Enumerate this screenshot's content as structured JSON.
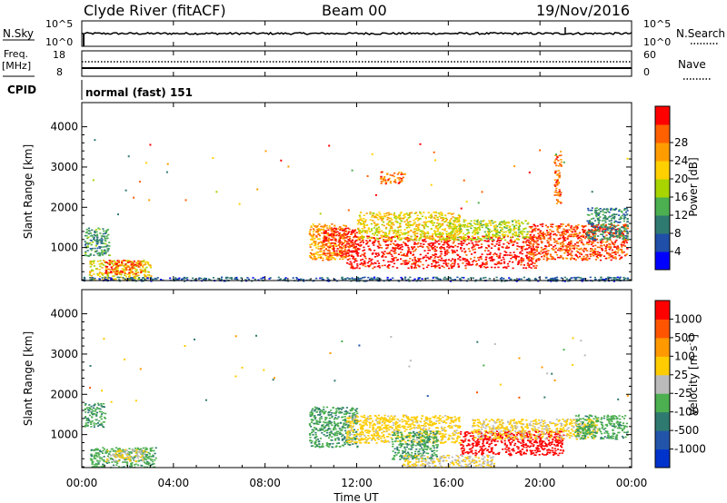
{
  "header": {
    "station": "Clyde River (fitACF)",
    "beam": "Beam 00",
    "date": "19/Nov/2016"
  },
  "noise_panel": {
    "left_label": "N.Sky",
    "right_label": "N.Search",
    "right_legend_style": "dotted",
    "left_ticks": [
      "10^5",
      "10^0"
    ],
    "right_ticks": [
      "10^5",
      "10^0"
    ]
  },
  "freq_panel": {
    "left_label_1": "Freq.",
    "left_label_2": "[MHz]",
    "right_label": "Nave",
    "right_legend_style": "dotted",
    "left_ticks": [
      "18",
      "8"
    ],
    "right_ticks": [
      "60",
      "0"
    ]
  },
  "cpid": {
    "label": "CPID",
    "value": "normal (fast) 151"
  },
  "time_axis": {
    "label": "Time UT",
    "ticks": [
      "00:00",
      "04:00",
      "08:00",
      "12:00",
      "16:00",
      "20:00",
      "00:00"
    ]
  },
  "range_axis": {
    "label": "Slant Range [km]",
    "ticks": [
      "1000",
      "2000",
      "3000",
      "4000"
    ]
  },
  "power_colorbar": {
    "label": "Power [dB]",
    "ticks": [
      "4",
      "8",
      "12",
      "16",
      "20",
      "24",
      "28"
    ],
    "colors": [
      "#0000ff",
      "#1f4fa8",
      "#2f7a70",
      "#4caf50",
      "#a8d400",
      "#ffd000",
      "#ff9d00",
      "#ff6000",
      "#ff0000"
    ]
  },
  "velocity_colorbar": {
    "label": "Velocity [m s",
    "label_sup": "-1",
    "label_end": "]",
    "ticks": [
      "1000",
      "500",
      "100",
      "25",
      "-25",
      "-100",
      "-500",
      "-1000"
    ],
    "colors": [
      "#0033cc",
      "#2255aa",
      "#2f7a70",
      "#4caf50",
      "#bbbbbb",
      "#ffcc00",
      "#ff9900",
      "#ff5500",
      "#ff0000"
    ]
  },
  "chart_data": [
    {
      "type": "heatmap",
      "title": "Power",
      "xlabel": "Time UT",
      "ylabel": "Slant Range [km]",
      "xlim": [
        0,
        24
      ],
      "ylim": [
        180,
        4600
      ],
      "colorbar_range": [
        0,
        30
      ],
      "regions": [
        {
          "t": [
            0.1,
            1.2
          ],
          "r": [
            800,
            1500
          ],
          "value": 10
        },
        {
          "t": [
            0.3,
            3.0
          ],
          "r": [
            200,
            700
          ],
          "value": 18
        },
        {
          "t": [
            1.0,
            2.6
          ],
          "r": [
            350,
            700
          ],
          "value": 26
        },
        {
          "t": [
            0.0,
            24.0
          ],
          "r": [
            180,
            280
          ],
          "value": 6
        },
        {
          "t": [
            9.9,
            11.5
          ],
          "r": [
            700,
            1600
          ],
          "value": 22
        },
        {
          "t": [
            10.5,
            12.0
          ],
          "r": [
            800,
            1500
          ],
          "value": 28
        },
        {
          "t": [
            11.5,
            20.0
          ],
          "r": [
            500,
            1300
          ],
          "value": 29
        },
        {
          "t": [
            12.0,
            16.5
          ],
          "r": [
            1200,
            1900
          ],
          "value": 18
        },
        {
          "t": [
            16.0,
            19.5
          ],
          "r": [
            1200,
            1700
          ],
          "value": 16
        },
        {
          "t": [
            19.5,
            23.8
          ],
          "r": [
            700,
            1600
          ],
          "value": 26
        },
        {
          "t": [
            22.0,
            23.8
          ],
          "r": [
            1200,
            2000
          ],
          "value": 9
        },
        {
          "t": [
            13.0,
            14.0
          ],
          "r": [
            2600,
            2900
          ],
          "value": 24
        },
        {
          "t": [
            20.6,
            20.9
          ],
          "r": [
            2100,
            3400
          ],
          "value": 24
        }
      ]
    },
    {
      "type": "heatmap",
      "title": "Velocity",
      "xlabel": "Time UT",
      "ylabel": "Slant Range [km]",
      "xlim": [
        0,
        24
      ],
      "ylim": [
        180,
        4600
      ],
      "colorbar_range": [
        -1000,
        1000
      ],
      "regions": [
        {
          "t": [
            0.1,
            1.0
          ],
          "r": [
            1200,
            1800
          ],
          "value": -300
        },
        {
          "t": [
            0.3,
            3.2
          ],
          "r": [
            200,
            700
          ],
          "value": -250
        },
        {
          "t": [
            1.0,
            2.8
          ],
          "r": [
            350,
            650
          ],
          "value": 100
        },
        {
          "t": [
            9.9,
            12.0
          ],
          "r": [
            700,
            1700
          ],
          "value": -300
        },
        {
          "t": [
            11.5,
            16.5
          ],
          "r": [
            800,
            1500
          ],
          "value": 200
        },
        {
          "t": [
            13.5,
            15.5
          ],
          "r": [
            400,
            1100
          ],
          "value": -300
        },
        {
          "t": [
            16.5,
            21.0
          ],
          "r": [
            500,
            1100
          ],
          "value": 900
        },
        {
          "t": [
            17.0,
            22.5
          ],
          "r": [
            900,
            1400
          ],
          "value": 150
        },
        {
          "t": [
            21.5,
            23.8
          ],
          "r": [
            900,
            1500
          ],
          "value": -250
        },
        {
          "t": [
            14.0,
            18.0
          ],
          "r": [
            200,
            500
          ],
          "value": 100
        }
      ]
    }
  ]
}
